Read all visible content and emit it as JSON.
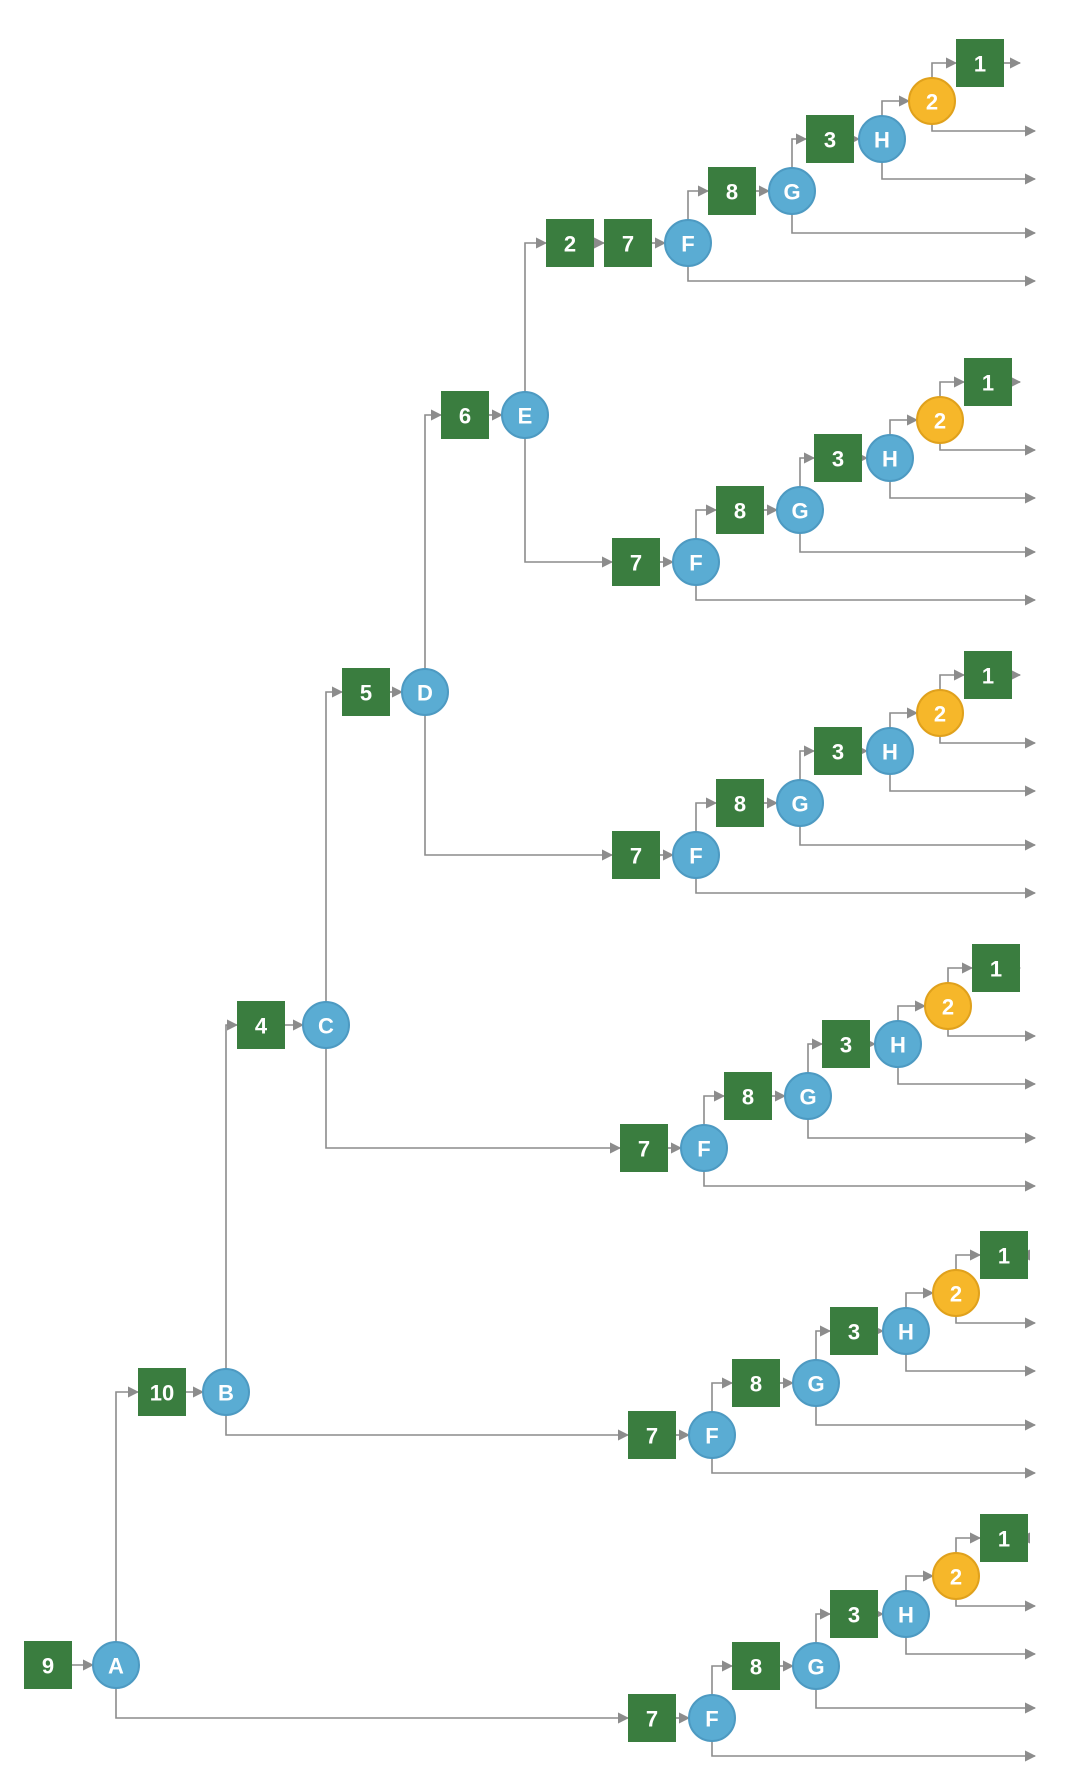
{
  "colors": {
    "square": "#3a7d3f",
    "circle": "#5aacd3",
    "circle_stroke": "#4d9ac2",
    "orange": "#f6b72a",
    "orange_stroke": "#e0a11c",
    "edge": "#8c8c8c"
  },
  "root": {
    "start": {
      "label": "9"
    },
    "label": "A",
    "branches": [
      {
        "label": "10",
        "node": "B",
        "branches": [
          {
            "label": "4",
            "node": "C",
            "branches": [
              {
                "label": "5",
                "node": "D",
                "branches": [
                  {
                    "label": "6",
                    "node": "E",
                    "branches": [
                      {
                        "labels": [
                          "2",
                          "7"
                        ],
                        "node": "F"
                      },
                      {
                        "labels": [
                          "7"
                        ],
                        "node": "F"
                      }
                    ]
                  },
                  {
                    "labels": [
                      "7"
                    ],
                    "node": "F"
                  }
                ]
              },
              {
                "labels": [
                  "7"
                ],
                "node": "F"
              }
            ]
          },
          {
            "labels": [
              "7"
            ],
            "node": "F"
          }
        ]
      },
      {
        "labels": [
          "7"
        ],
        "node": "F"
      }
    ]
  },
  "f_subtree": {
    "g_label": "8",
    "g_node": "G",
    "h_label": "3",
    "h_node": "H",
    "orange_node": "2",
    "end_label": "1"
  }
}
